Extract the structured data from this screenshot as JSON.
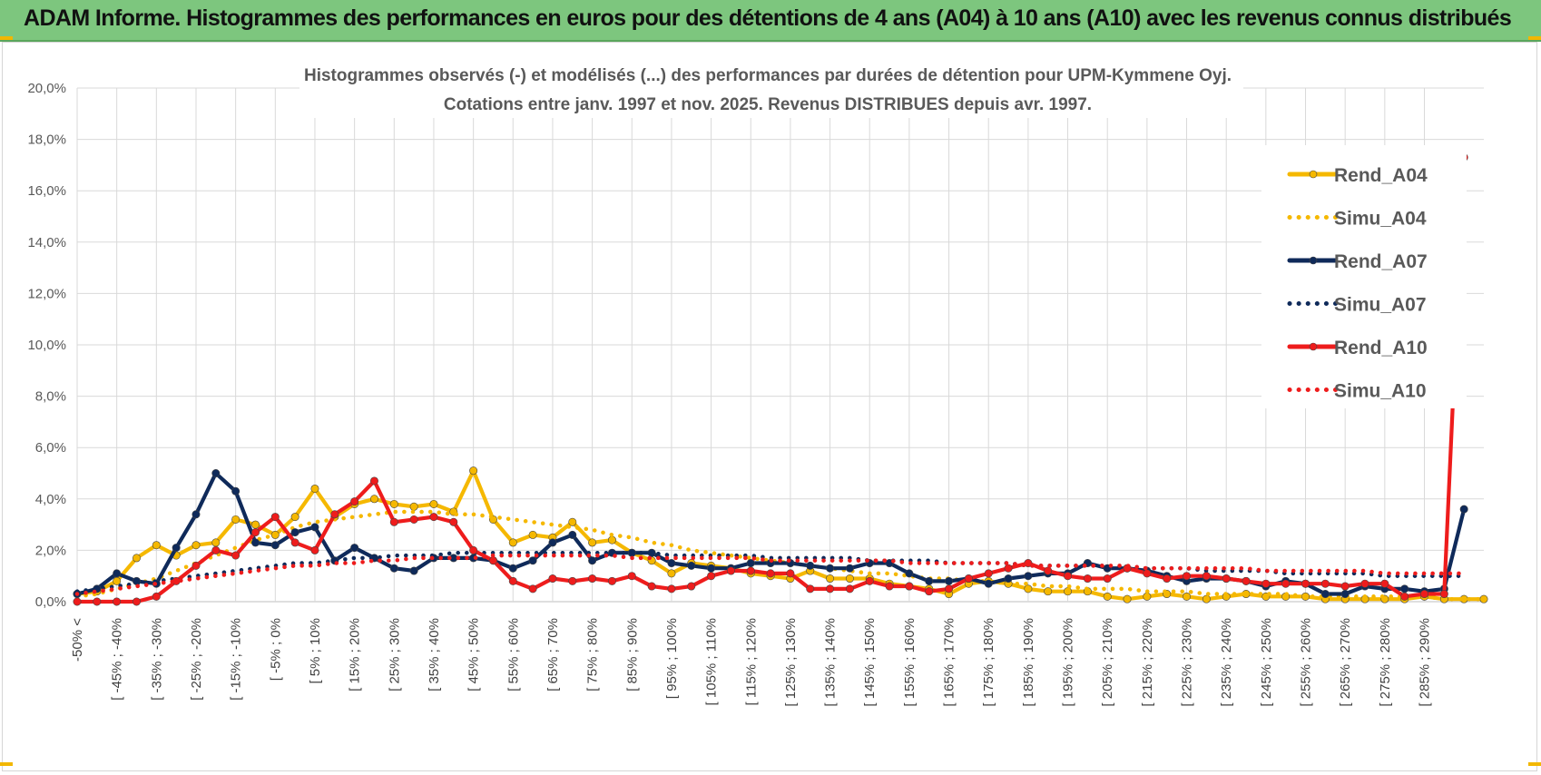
{
  "header": {
    "title": "ADAM Informe. Histogrammes des performances en euros pour des détentions de 4 ans (A04) à 10 ans (A10) avec les revenus connus distribués"
  },
  "colors": {
    "banner": "#7dc67e",
    "A04": "#f5b800",
    "A07": "#0f2a5a",
    "A10": "#ee1c1c",
    "grid": "#d9d9d9"
  },
  "chart_data": {
    "type": "line",
    "title": "Histogrammes observés (-) et modélisés (...) des performances par durées de détention pour UPM-Kymmene Oyj.",
    "subtitle": "Cotations entre janv. 1997 et nov. 2025. Revenus DISTRIBUES depuis avr. 1997.",
    "y_ticks": [
      "0,0%",
      "2,0%",
      "4,0%",
      "6,0%",
      "8,0%",
      "10,0%",
      "12,0%",
      "14,0%",
      "16,0%",
      "18,0%",
      "20,0%"
    ],
    "ylim": [
      0,
      20
    ],
    "grid": true,
    "legend_position": "right",
    "x_tick_labels": [
      "-50% <",
      "[ -45% ; -40%",
      "[ -35% ; -30%",
      "[ -25% ; -20%",
      "[ -15% ; -10%",
      "[ -5% ; 0%",
      "[ 5% ; 10%",
      "[ 15% ; 20%",
      "[ 25% ; 30%",
      "[ 35% ; 40%",
      "[ 45% ; 50%",
      "[ 55% ; 60%",
      "[ 65% ; 70%",
      "[ 75% ; 80%",
      "[ 85% ; 90%",
      "[ 95% ; 100%",
      "[ 105% ; 110%",
      "[ 115% ; 120%",
      "[ 125% ; 130%",
      "[ 135% ; 140%",
      "[ 145% ; 150%",
      "[ 155% ; 160%",
      "[ 165% ; 170%",
      "[ 175% ; 180%",
      "[ 185% ; 190%",
      "[ 195% ; 200%",
      "[ 205% ; 210%",
      "[ 215% ; 220%",
      "[ 225% ; 230%",
      "[ 235% ; 240%",
      "[ 245% ; 250%",
      "[ 255% ; 260%",
      "[ 265% ; 270%",
      "[ 275% ; 280%",
      "[ 285% ; 290%"
    ],
    "series": [
      {
        "name": "Rend_A04",
        "style": "solid",
        "color": "#f5b800",
        "values": [
          0.3,
          0.4,
          0.8,
          1.7,
          2.2,
          1.8,
          2.2,
          2.3,
          3.2,
          3.0,
          2.6,
          3.3,
          4.4,
          3.3,
          3.8,
          4.0,
          3.8,
          3.7,
          3.8,
          3.5,
          5.1,
          3.2,
          2.3,
          2.6,
          2.5,
          3.1,
          2.3,
          2.4,
          1.9,
          1.6,
          1.1,
          1.5,
          1.4,
          1.3,
          1.1,
          1.0,
          0.9,
          1.2,
          0.9,
          0.9,
          0.9,
          0.7,
          0.6,
          0.5,
          0.3,
          0.7,
          0.8,
          0.7,
          0.5,
          0.4,
          0.4,
          0.4,
          0.2,
          0.1,
          0.2,
          0.3,
          0.2,
          0.1,
          0.2,
          0.3,
          0.2,
          0.2,
          0.2,
          0.1,
          0.1,
          0.1,
          0.1,
          0.1,
          0.2,
          0.1,
          0.1,
          0.1
        ]
      },
      {
        "name": "Simu_A04",
        "style": "dotted",
        "color": "#f5b800",
        "values": [
          0.2,
          0.3,
          0.5,
          0.7,
          0.9,
          1.2,
          1.5,
          1.8,
          2.1,
          2.4,
          2.6,
          2.9,
          3.1,
          3.2,
          3.3,
          3.4,
          3.5,
          3.5,
          3.5,
          3.4,
          3.4,
          3.3,
          3.2,
          3.1,
          3.0,
          2.9,
          2.8,
          2.6,
          2.5,
          2.3,
          2.2,
          2.0,
          1.9,
          1.8,
          1.7,
          1.6,
          1.5,
          1.4,
          1.3,
          1.2,
          1.1,
          1.1,
          1.0,
          0.9,
          0.9,
          0.8,
          0.8,
          0.7,
          0.7,
          0.6,
          0.6,
          0.5,
          0.5,
          0.5,
          0.4,
          0.4,
          0.4,
          0.3,
          0.3,
          0.3,
          0.3,
          0.3,
          0.2,
          0.2,
          0.2,
          0.2,
          0.2,
          0.2,
          0.2,
          0.1,
          0.1,
          0.1
        ]
      },
      {
        "name": "Rend_A07",
        "style": "solid",
        "color": "#0f2a5a",
        "values": [
          0.3,
          0.5,
          1.1,
          0.8,
          0.7,
          2.1,
          3.4,
          5.0,
          4.3,
          2.3,
          2.2,
          2.7,
          2.9,
          1.6,
          2.1,
          1.7,
          1.3,
          1.2,
          1.7,
          1.7,
          1.7,
          1.6,
          1.3,
          1.6,
          2.3,
          2.6,
          1.6,
          1.9,
          1.9,
          1.9,
          1.5,
          1.4,
          1.3,
          1.3,
          1.5,
          1.5,
          1.5,
          1.4,
          1.3,
          1.3,
          1.5,
          1.5,
          1.1,
          0.8,
          0.8,
          0.9,
          0.7,
          0.9,
          1.0,
          1.1,
          1.1,
          1.5,
          1.3,
          1.3,
          1.2,
          1.0,
          0.8,
          0.9,
          0.9,
          0.8,
          0.6,
          0.8,
          0.7,
          0.3,
          0.3,
          0.6,
          0.5,
          0.5,
          0.4,
          0.5,
          3.6
        ]
      },
      {
        "name": "Simu_A07",
        "style": "dotted",
        "color": "#0f2a5a",
        "values": [
          0.4,
          0.5,
          0.6,
          0.7,
          0.8,
          0.9,
          1.0,
          1.1,
          1.2,
          1.3,
          1.4,
          1.5,
          1.5,
          1.6,
          1.7,
          1.7,
          1.8,
          1.8,
          1.8,
          1.9,
          1.9,
          1.9,
          1.9,
          1.9,
          1.9,
          1.9,
          1.9,
          1.9,
          1.9,
          1.9,
          1.8,
          1.8,
          1.8,
          1.8,
          1.8,
          1.7,
          1.7,
          1.7,
          1.7,
          1.7,
          1.6,
          1.6,
          1.6,
          1.6,
          1.5,
          1.5,
          1.5,
          1.5,
          1.4,
          1.4,
          1.4,
          1.4,
          1.4,
          1.3,
          1.3,
          1.3,
          1.3,
          1.2,
          1.2,
          1.2,
          1.2,
          1.1,
          1.1,
          1.1,
          1.1,
          1.1,
          1.0,
          1.0,
          1.0,
          1.0,
          1.0
        ]
      },
      {
        "name": "Rend_A10",
        "style": "solid",
        "color": "#ee1c1c",
        "values": [
          0.0,
          0.0,
          0.0,
          0.0,
          0.2,
          0.8,
          1.4,
          2.0,
          1.8,
          2.7,
          3.3,
          2.3,
          2.0,
          3.4,
          3.9,
          4.7,
          3.1,
          3.2,
          3.3,
          3.1,
          2.0,
          1.6,
          0.8,
          0.5,
          0.9,
          0.8,
          0.9,
          0.8,
          1.0,
          0.6,
          0.5,
          0.6,
          1.0,
          1.2,
          1.2,
          1.1,
          1.1,
          0.5,
          0.5,
          0.5,
          0.8,
          0.6,
          0.6,
          0.4,
          0.5,
          0.9,
          1.1,
          1.3,
          1.5,
          1.2,
          1.0,
          0.9,
          0.9,
          1.3,
          1.1,
          0.9,
          1.0,
          1.0,
          0.9,
          0.8,
          0.7,
          0.7,
          0.7,
          0.7,
          0.6,
          0.7,
          0.7,
          0.2,
          0.3,
          0.3,
          17.3
        ]
      },
      {
        "name": "Simu_A10",
        "style": "dotted",
        "color": "#ee1c1c",
        "values": [
          0.3,
          0.4,
          0.5,
          0.6,
          0.7,
          0.8,
          0.9,
          1.0,
          1.1,
          1.2,
          1.3,
          1.4,
          1.4,
          1.5,
          1.5,
          1.6,
          1.6,
          1.7,
          1.7,
          1.7,
          1.7,
          1.8,
          1.8,
          1.8,
          1.8,
          1.8,
          1.8,
          1.8,
          1.7,
          1.7,
          1.7,
          1.7,
          1.7,
          1.7,
          1.7,
          1.6,
          1.6,
          1.6,
          1.6,
          1.6,
          1.6,
          1.6,
          1.5,
          1.5,
          1.5,
          1.5,
          1.5,
          1.5,
          1.4,
          1.4,
          1.4,
          1.4,
          1.4,
          1.4,
          1.3,
          1.3,
          1.3,
          1.3,
          1.3,
          1.3,
          1.2,
          1.2,
          1.2,
          1.2,
          1.2,
          1.2,
          1.1,
          1.1,
          1.1,
          1.1,
          1.1
        ]
      }
    ]
  }
}
